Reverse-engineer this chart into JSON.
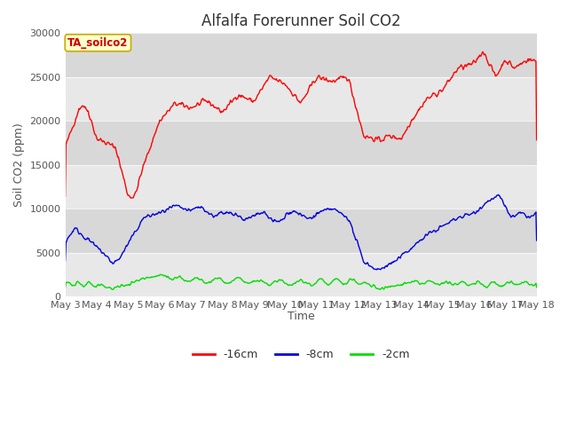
{
  "title": "Alfalfa Forerunner Soil CO2",
  "ylabel": "Soil CO2 (ppm)",
  "xlabel": "Time",
  "annotation": "TA_soilco2",
  "legend_labels": [
    "-16cm",
    "-8cm",
    "-2cm"
  ],
  "legend_colors": [
    "#ff0000",
    "#0000dd",
    "#00dd00"
  ],
  "x_tick_labels": [
    "May 3",
    "May 4",
    "May 5",
    "May 6",
    "May 7",
    "May 8",
    "May 9",
    "May 10",
    "May 11",
    "May 12",
    "May 13",
    "May 14",
    "May 15",
    "May 16",
    "May 17",
    "May 18"
  ],
  "ylim": [
    0,
    30000
  ],
  "band_colors": [
    "#e8e8e8",
    "#d8d8d8"
  ],
  "figure_background": "#ffffff",
  "title_fontsize": 12,
  "axis_fontsize": 9,
  "tick_fontsize": 8,
  "annotation_facecolor": "#ffffcc",
  "annotation_edgecolor": "#ccaa00",
  "annotation_textcolor": "#cc0000"
}
